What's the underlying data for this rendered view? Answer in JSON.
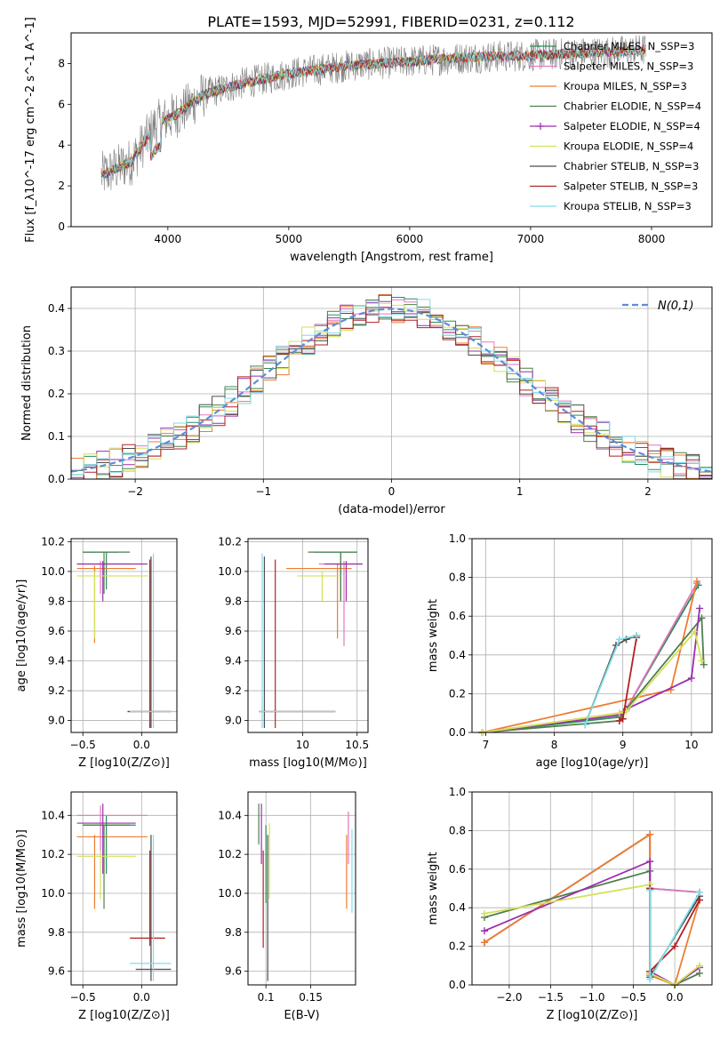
{
  "figure_title": "PLATE=1593, MJD=52991, FIBERID=0231, z=0.112",
  "series_colors": [
    "#2e8b57",
    "#e377c2",
    "#ed7d31",
    "#4f7f4f",
    "#9b2fae",
    "#d4e157",
    "#4d4d4d",
    "#b22222",
    "#80deea"
  ],
  "chart_data": [
    {
      "id": "spectrum",
      "type": "line",
      "xlabel": "wavelength [Angstrom, rest frame]",
      "ylabel": "Flux [f_λ10^-17 erg cm^-2 s^-1 A^-1]",
      "xlim": [
        3200,
        8500
      ],
      "ylim": [
        0,
        9.5
      ],
      "xticks": [
        4000,
        5000,
        6000,
        7000,
        8000
      ],
      "yticks": [
        0,
        2,
        4,
        6,
        8
      ],
      "legend_position": "right",
      "series": [
        {
          "name": "Chabrier MILES, N_SSP=3"
        },
        {
          "name": "Salpeter MILES, N_SSP=3"
        },
        {
          "name": "Kroupa MILES, N_SSP=3"
        },
        {
          "name": "Chabrier ELODIE, N_SSP=4"
        },
        {
          "name": "Salpeter ELODIE, N_SSP=4"
        },
        {
          "name": "Kroupa ELODIE, N_SSP=4"
        },
        {
          "name": "Chabrier STELIB, N_SSP=3"
        },
        {
          "name": "Salpeter STELIB, N_SSP=3"
        },
        {
          "name": "Kroupa STELIB, N_SSP=3"
        }
      ],
      "model_continuum": {
        "x": [
          3450,
          3700,
          3900,
          4100,
          4300,
          4600,
          5000,
          5500,
          6000,
          6500,
          7000,
          7400,
          7800,
          8000
        ],
        "y": [
          2.5,
          3.2,
          5.0,
          5.6,
          6.5,
          7.0,
          7.5,
          7.9,
          8.1,
          8.3,
          8.4,
          8.5,
          8.6,
          8.7
        ]
      }
    },
    {
      "id": "residuals",
      "type": "line",
      "xlabel": "(data-model)/error",
      "ylabel": "Normed distribution",
      "xlim": [
        -2.5,
        2.5
      ],
      "ylim": [
        0,
        0.45
      ],
      "xticks": [
        -2,
        -1,
        0,
        1,
        2
      ],
      "yticks": [
        0.0,
        0.1,
        0.2,
        0.3,
        0.4
      ],
      "legend_position": "top-right",
      "reference": {
        "name": "N(0,1)",
        "mean": 0,
        "sigma": 1
      },
      "hist_bins": 50
    },
    {
      "id": "age_vs_Z",
      "type": "scatter",
      "xlabel": "Z [log10(Z/Z⊙)]",
      "ylabel": "age  [log10(age/yr)]",
      "xlim": [
        -0.6,
        0.3
      ],
      "ylim": [
        8.92,
        10.22
      ],
      "xticks": [
        -0.5,
        0.0
      ],
      "yticks": [
        9.0,
        9.2,
        9.4,
        9.6,
        9.8,
        10.0,
        10.2
      ]
    },
    {
      "id": "age_vs_mass",
      "type": "scatter",
      "xlabel": "mass [log10(M/M⊙)]",
      "xlim": [
        9.5,
        10.6
      ],
      "ylim": [
        8.92,
        10.22
      ],
      "xticks": [
        10.0,
        10.5
      ],
      "yticks": [
        9.0,
        9.2,
        9.4,
        9.6,
        9.8,
        10.0,
        10.2
      ]
    },
    {
      "id": "weight_vs_age",
      "type": "line",
      "xlabel": "age  [log10(age/yr)]",
      "ylabel": "mass weight",
      "xlim": [
        6.8,
        10.3
      ],
      "ylim": [
        0,
        1.0
      ],
      "xticks": [
        7,
        8,
        9,
        10
      ],
      "yticks": [
        0.0,
        0.2,
        0.4,
        0.6,
        0.8,
        1.0
      ],
      "series": [
        {
          "name": "Chabrier MILES",
          "x": [
            6.95,
            8.95,
            9.05,
            10.1
          ],
          "y": [
            0.0,
            0.08,
            0.12,
            0.76
          ]
        },
        {
          "name": "Salpeter MILES",
          "x": [
            6.95,
            8.95,
            9.05,
            10.08
          ],
          "y": [
            0.0,
            0.1,
            0.12,
            0.77
          ]
        },
        {
          "name": "Kroupa MILES",
          "x": [
            6.95,
            9.7,
            10.08
          ],
          "y": [
            0.0,
            0.22,
            0.78
          ]
        },
        {
          "name": "Chabrier ELODIE",
          "x": [
            6.95,
            8.95,
            9.05,
            10.15,
            10.18
          ],
          "y": [
            0.0,
            0.06,
            0.12,
            0.59,
            0.35
          ]
        },
        {
          "name": "Salpeter ELODIE",
          "x": [
            6.95,
            8.95,
            9.05,
            10.0,
            10.12
          ],
          "y": [
            0.0,
            0.09,
            0.12,
            0.28,
            0.64
          ]
        },
        {
          "name": "Kroupa ELODIE",
          "x": [
            6.95,
            8.95,
            9.05,
            10.05,
            10.15
          ],
          "y": [
            0.0,
            0.1,
            0.11,
            0.52,
            0.37
          ]
        },
        {
          "name": "Chabrier STELIB",
          "x": [
            8.45,
            8.9,
            9.05,
            9.2
          ],
          "y": [
            0.04,
            0.45,
            0.48,
            0.5
          ]
        },
        {
          "name": "Salpeter STELIB",
          "x": [
            8.95,
            9.0,
            9.2
          ],
          "y": [
            0.06,
            0.07,
            0.49
          ]
        },
        {
          "name": "Kroupa STELIB",
          "x": [
            8.45,
            8.95,
            9.2
          ],
          "y": [
            0.04,
            0.48,
            0.5
          ]
        }
      ]
    },
    {
      "id": "mass_vs_Z",
      "type": "scatter",
      "xlabel": "Z [log10(Z/Z⊙)]",
      "ylabel": "mass [log10(M/M⊙)]",
      "xlim": [
        -0.6,
        0.3
      ],
      "ylim": [
        9.53,
        10.52
      ],
      "xticks": [
        -0.5,
        0.0
      ],
      "yticks": [
        9.6,
        9.8,
        10.0,
        10.2,
        10.4
      ]
    },
    {
      "id": "mass_vs_ebv",
      "type": "scatter",
      "xlabel": "E(B-V)",
      "xlim": [
        0.08,
        0.2
      ],
      "ylim": [
        9.53,
        10.52
      ],
      "xticks": [
        0.1,
        0.15
      ],
      "yticks": [
        9.6,
        9.8,
        10.0,
        10.2,
        10.4
      ]
    },
    {
      "id": "weight_vs_Z",
      "type": "line",
      "xlabel": "Z [log10(Z/Z⊙)]",
      "ylabel": "mass weight",
      "xlim": [
        -2.45,
        0.45
      ],
      "ylim": [
        0,
        1.0
      ],
      "xticks": [
        -2.0,
        -1.5,
        -1.0,
        -0.5,
        0.0
      ],
      "yticks": [
        0.0,
        0.2,
        0.4,
        0.6,
        0.8,
        1.0
      ],
      "series": [
        {
          "name": "Chabrier MILES",
          "x": [
            -2.3,
            -0.3,
            -0.3,
            0.3
          ],
          "y": [
            0.22,
            0.78,
            0.5,
            0.48
          ]
        },
        {
          "name": "Salpeter MILES",
          "x": [
            -2.3,
            -0.3,
            -0.3,
            0.3
          ],
          "y": [
            0.22,
            0.78,
            0.5,
            0.48
          ]
        },
        {
          "name": "Kroupa MILES",
          "x": [
            -2.3,
            -0.3,
            -0.3,
            0.0,
            0.3
          ],
          "y": [
            0.22,
            0.78,
            0.05,
            0.0,
            0.44
          ]
        },
        {
          "name": "Chabrier ELODIE",
          "x": [
            -2.3,
            -0.3,
            -0.3,
            0.0,
            0.3
          ],
          "y": [
            0.35,
            0.59,
            0.06,
            0.0,
            0.06
          ]
        },
        {
          "name": "Salpeter ELODIE",
          "x": [
            -2.3,
            -0.3,
            -0.3,
            0.0,
            0.3
          ],
          "y": [
            0.28,
            0.64,
            0.07,
            0.0,
            0.09
          ]
        },
        {
          "name": "Kroupa ELODIE",
          "x": [
            -2.3,
            -0.3,
            -0.3,
            0.0,
            0.3
          ],
          "y": [
            0.37,
            0.52,
            0.06,
            0.0,
            0.1
          ]
        },
        {
          "name": "Chabrier STELIB",
          "x": [
            -0.3,
            -0.3,
            0.3
          ],
          "y": [
            0.5,
            0.04,
            0.46
          ]
        },
        {
          "name": "Salpeter STELIB",
          "x": [
            -0.3,
            -0.3,
            0.0,
            0.3
          ],
          "y": [
            0.5,
            0.07,
            0.2,
            0.44
          ]
        },
        {
          "name": "Kroupa STELIB",
          "x": [
            -0.3,
            -0.3,
            0.3
          ],
          "y": [
            0.49,
            0.03,
            0.48
          ]
        }
      ]
    }
  ]
}
